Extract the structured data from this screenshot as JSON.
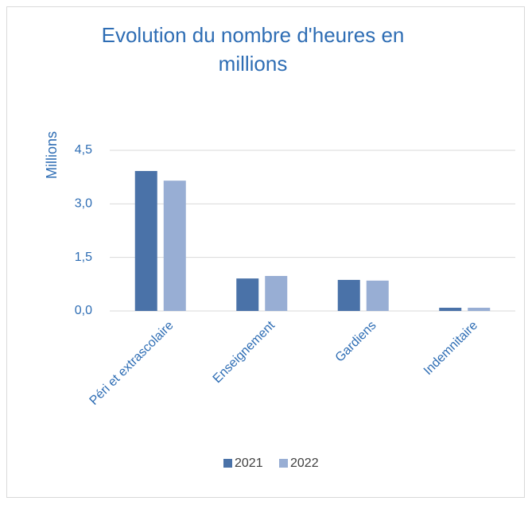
{
  "chart_data": {
    "type": "bar",
    "title": "Evolution du nombre d'heures en millions",
    "y_label": "Millions",
    "categories": [
      "Péri et extrascolaire",
      "Enseignement",
      "Gardiens",
      "Indemnitaire"
    ],
    "series": [
      {
        "name": "2021",
        "color": "#4a72a8",
        "values": [
          3.92,
          0.91,
          0.87,
          0.09
        ]
      },
      {
        "name": "2022",
        "color": "#98aed4",
        "values": [
          3.65,
          0.98,
          0.85,
          0.09
        ]
      }
    ],
    "ylim": [
      0,
      4.5
    ],
    "yticks": [
      {
        "value": 0,
        "label": "0,0"
      },
      {
        "value": 1.5,
        "label": "1,5"
      },
      {
        "value": 3,
        "label": "3,0"
      },
      {
        "value": 4.5,
        "label": "4,5"
      }
    ],
    "grid": true,
    "legend": "bottom"
  }
}
